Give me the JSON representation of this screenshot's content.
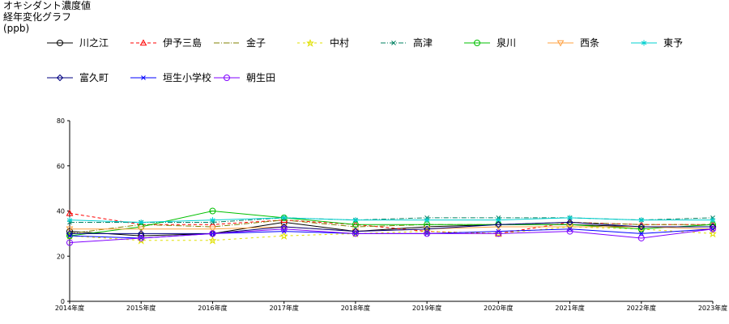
{
  "chart_data": {
    "type": "line",
    "title": [
      "オキシダント濃度値",
      "経年変化グラフ",
      "(ppb)"
    ],
    "categories": [
      "2014年度",
      "2015年度",
      "2016年度",
      "2017年度",
      "2018年度",
      "2019年度",
      "2020年度",
      "2021年度",
      "2022年度",
      "2023年度"
    ],
    "ylim": [
      0,
      80
    ],
    "yticks": [
      0,
      20,
      40,
      60,
      80
    ],
    "legend_position": "top",
    "series": [
      {
        "name": "川之江",
        "color": "#000000",
        "dash": "",
        "marker": "circle",
        "values": [
          31,
          29,
          30,
          35,
          31,
          33,
          34,
          34,
          33,
          33
        ]
      },
      {
        "name": "伊予三島",
        "color": "#ff0000",
        "dash": "4,3",
        "marker": "triangle",
        "values": [
          39,
          34,
          34,
          36,
          34,
          31,
          30,
          35,
          34,
          34
        ]
      },
      {
        "name": "金子",
        "color": "#808000",
        "dash": "7,2,1,2",
        "marker": "hline",
        "values": [
          30,
          34,
          33,
          36,
          33,
          34,
          34,
          35,
          34,
          34
        ]
      },
      {
        "name": "中村",
        "color": "#e0e000",
        "dash": "3,4",
        "marker": "star",
        "values": [
          29,
          27,
          27,
          29,
          30,
          31,
          30,
          33,
          32,
          30
        ]
      },
      {
        "name": "高津",
        "color": "#008060",
        "dash": "6,2,1,2",
        "marker": "x",
        "values": [
          35,
          35,
          35,
          37,
          36,
          37,
          37,
          37,
          36,
          37
        ]
      },
      {
        "name": "泉川",
        "color": "#00c000",
        "dash": "",
        "marker": "circle-cross",
        "values": [
          29,
          33,
          40,
          37,
          34,
          34,
          34,
          34,
          32,
          34
        ]
      },
      {
        "name": "西条",
        "color": "#ffa040",
        "dash": "",
        "marker": "triangle-down",
        "values": [
          32,
          32,
          32,
          33,
          31,
          32,
          33,
          33,
          33,
          32
        ]
      },
      {
        "name": "東予",
        "color": "#00d0d0",
        "dash": "",
        "marker": "asterisk",
        "values": [
          36,
          35,
          36,
          37,
          36,
          36,
          36,
          37,
          36,
          36
        ]
      },
      {
        "name": "富久町",
        "color": "#000080",
        "dash": "",
        "marker": "diamond",
        "values": [
          30,
          30,
          30,
          33,
          31,
          32,
          34,
          35,
          33,
          33
        ]
      },
      {
        "name": "垣生小学校",
        "color": "#0000ff",
        "dash": "",
        "marker": "x",
        "values": [
          29,
          28,
          30,
          31,
          30,
          30,
          31,
          32,
          30,
          32
        ]
      },
      {
        "name": "朝生田",
        "color": "#8000ff",
        "dash": "",
        "marker": "circle",
        "values": [
          26,
          28,
          30,
          32,
          30,
          30,
          30,
          31,
          28,
          32
        ]
      }
    ]
  }
}
